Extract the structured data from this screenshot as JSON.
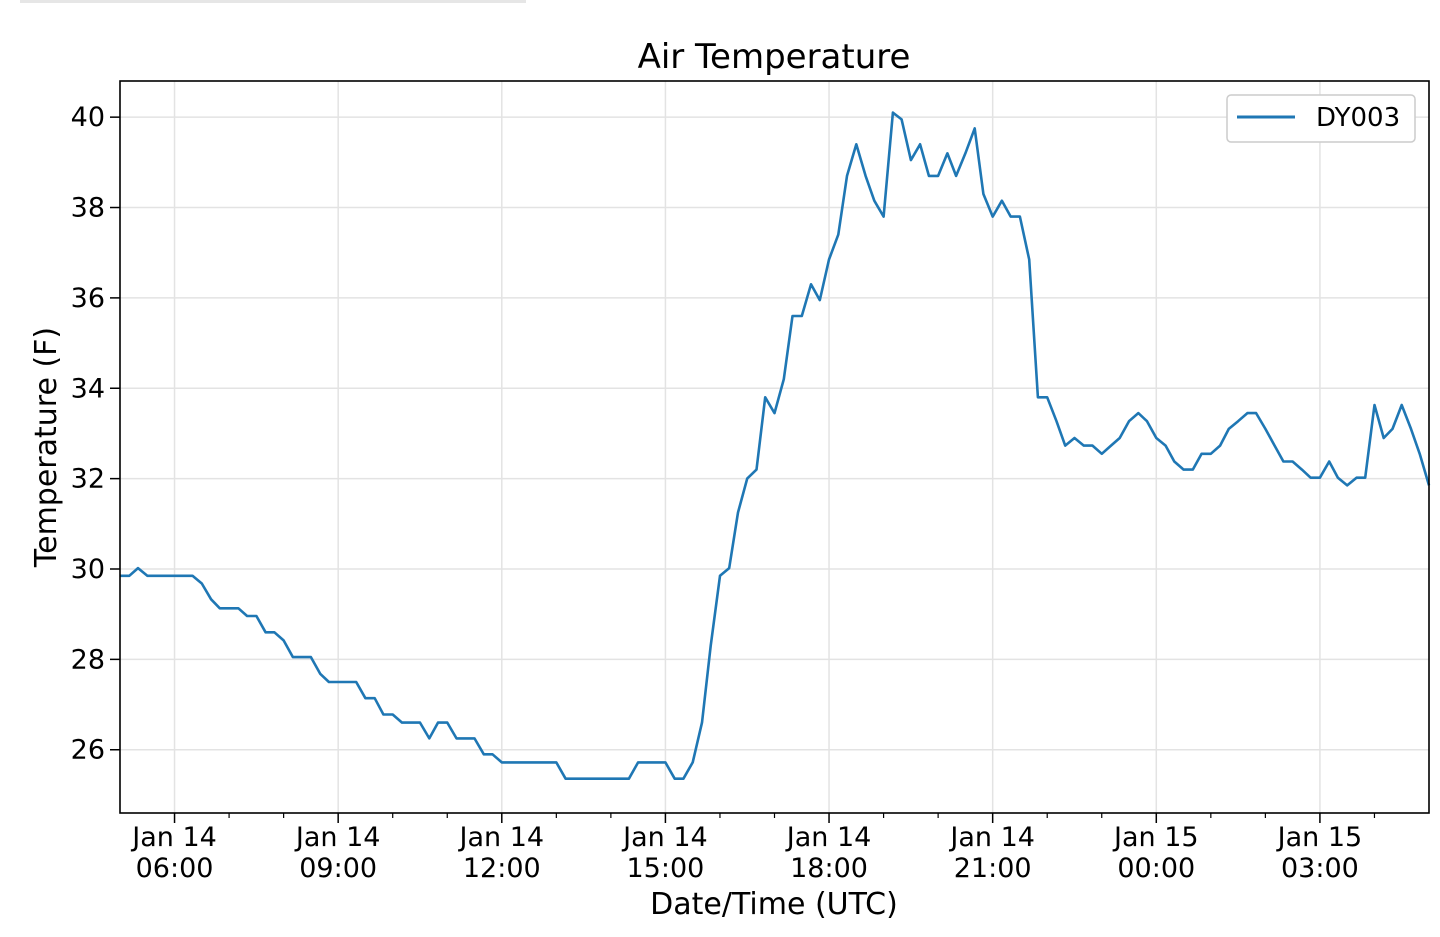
{
  "chart_data": {
    "type": "line",
    "title": "Air Temperature",
    "xlabel": "Date/Time (UTC)",
    "ylabel": "Temperature (F)",
    "x_units": "hours since Jan 14 00:00 UTC",
    "xlim": [
      5.0,
      29.0
    ],
    "ylim": [
      24.6,
      40.8
    ],
    "grid": true,
    "legend_position": "top-right",
    "x_ticks": [
      {
        "value": 6,
        "line1": "Jan 14",
        "line2": "06:00"
      },
      {
        "value": 9,
        "line1": "Jan 14",
        "line2": "09:00"
      },
      {
        "value": 12,
        "line1": "Jan 14",
        "line2": "12:00"
      },
      {
        "value": 15,
        "line1": "Jan 14",
        "line2": "15:00"
      },
      {
        "value": 18,
        "line1": "Jan 14",
        "line2": "18:00"
      },
      {
        "value": 21,
        "line1": "Jan 14",
        "line2": "21:00"
      },
      {
        "value": 24,
        "line1": "Jan 15",
        "line2": "00:00"
      },
      {
        "value": 27,
        "line1": "Jan 15",
        "line2": "03:00"
      }
    ],
    "x_minor_ticks": [
      7,
      8,
      10,
      11,
      13,
      14,
      16,
      17,
      19,
      20,
      22,
      23,
      25,
      26,
      28
    ],
    "y_ticks": [
      26,
      28,
      30,
      32,
      34,
      36,
      38,
      40
    ],
    "series": [
      {
        "name": "DY003",
        "color": "#1f77b4",
        "points": [
          [
            5.0,
            29.85
          ],
          [
            5.17,
            29.85
          ],
          [
            5.33,
            30.02
          ],
          [
            5.5,
            29.85
          ],
          [
            5.67,
            29.85
          ],
          [
            5.83,
            29.85
          ],
          [
            6.0,
            29.85
          ],
          [
            6.17,
            29.85
          ],
          [
            6.33,
            29.85
          ],
          [
            6.5,
            29.68
          ],
          [
            6.67,
            29.33
          ],
          [
            6.83,
            29.13
          ],
          [
            7.0,
            29.13
          ],
          [
            7.17,
            29.13
          ],
          [
            7.33,
            28.96
          ],
          [
            7.5,
            28.96
          ],
          [
            7.67,
            28.6
          ],
          [
            7.83,
            28.6
          ],
          [
            8.0,
            28.42
          ],
          [
            8.17,
            28.05
          ],
          [
            8.33,
            28.05
          ],
          [
            8.5,
            28.05
          ],
          [
            8.67,
            27.68
          ],
          [
            8.83,
            27.5
          ],
          [
            9.0,
            27.5
          ],
          [
            9.17,
            27.5
          ],
          [
            9.33,
            27.5
          ],
          [
            9.5,
            27.14
          ],
          [
            9.67,
            27.14
          ],
          [
            9.83,
            26.78
          ],
          [
            10.0,
            26.78
          ],
          [
            10.17,
            26.6
          ],
          [
            10.33,
            26.6
          ],
          [
            10.5,
            26.6
          ],
          [
            10.67,
            26.25
          ],
          [
            10.83,
            26.6
          ],
          [
            11.0,
            26.6
          ],
          [
            11.17,
            26.25
          ],
          [
            11.33,
            26.25
          ],
          [
            11.5,
            26.25
          ],
          [
            11.67,
            25.9
          ],
          [
            11.83,
            25.9
          ],
          [
            12.0,
            25.72
          ],
          [
            12.17,
            25.72
          ],
          [
            12.33,
            25.72
          ],
          [
            12.5,
            25.72
          ],
          [
            12.67,
            25.72
          ],
          [
            12.83,
            25.72
          ],
          [
            13.0,
            25.72
          ],
          [
            13.17,
            25.36
          ],
          [
            13.33,
            25.36
          ],
          [
            13.5,
            25.36
          ],
          [
            13.67,
            25.36
          ],
          [
            13.83,
            25.36
          ],
          [
            14.0,
            25.36
          ],
          [
            14.17,
            25.36
          ],
          [
            14.33,
            25.36
          ],
          [
            14.5,
            25.72
          ],
          [
            14.67,
            25.72
          ],
          [
            14.83,
            25.72
          ],
          [
            15.0,
            25.72
          ],
          [
            15.17,
            25.36
          ],
          [
            15.33,
            25.36
          ],
          [
            15.5,
            25.72
          ],
          [
            15.67,
            26.6
          ],
          [
            15.83,
            28.3
          ],
          [
            16.0,
            29.85
          ],
          [
            16.17,
            30.02
          ],
          [
            16.33,
            31.25
          ],
          [
            16.5,
            32.0
          ],
          [
            16.67,
            32.2
          ],
          [
            16.83,
            33.8
          ],
          [
            17.0,
            33.45
          ],
          [
            17.17,
            34.2
          ],
          [
            17.33,
            35.6
          ],
          [
            17.5,
            35.6
          ],
          [
            17.67,
            36.3
          ],
          [
            17.83,
            35.95
          ],
          [
            18.0,
            36.85
          ],
          [
            18.17,
            37.4
          ],
          [
            18.33,
            38.7
          ],
          [
            18.5,
            39.4
          ],
          [
            18.67,
            38.7
          ],
          [
            18.83,
            38.15
          ],
          [
            19.0,
            37.8
          ],
          [
            19.17,
            40.1
          ],
          [
            19.33,
            39.95
          ],
          [
            19.5,
            39.05
          ],
          [
            19.67,
            39.4
          ],
          [
            19.83,
            38.7
          ],
          [
            20.0,
            38.7
          ],
          [
            20.17,
            39.2
          ],
          [
            20.33,
            38.7
          ],
          [
            20.5,
            39.2
          ],
          [
            20.67,
            39.75
          ],
          [
            20.83,
            38.3
          ],
          [
            21.0,
            37.8
          ],
          [
            21.17,
            38.15
          ],
          [
            21.33,
            37.8
          ],
          [
            21.5,
            37.8
          ],
          [
            21.67,
            36.85
          ],
          [
            21.83,
            33.8
          ],
          [
            22.0,
            33.8
          ],
          [
            22.17,
            33.27
          ],
          [
            22.33,
            32.73
          ],
          [
            22.5,
            32.9
          ],
          [
            22.67,
            32.73
          ],
          [
            22.83,
            32.73
          ],
          [
            23.0,
            32.55
          ],
          [
            23.17,
            32.73
          ],
          [
            23.33,
            32.9
          ],
          [
            23.5,
            33.27
          ],
          [
            23.67,
            33.45
          ],
          [
            23.83,
            33.27
          ],
          [
            24.0,
            32.9
          ],
          [
            24.17,
            32.73
          ],
          [
            24.33,
            32.38
          ],
          [
            24.5,
            32.2
          ],
          [
            24.67,
            32.2
          ],
          [
            24.83,
            32.55
          ],
          [
            25.0,
            32.55
          ],
          [
            25.17,
            32.73
          ],
          [
            25.33,
            33.1
          ],
          [
            25.5,
            33.27
          ],
          [
            25.67,
            33.45
          ],
          [
            25.83,
            33.45
          ],
          [
            26.0,
            33.1
          ],
          [
            26.17,
            32.73
          ],
          [
            26.33,
            32.38
          ],
          [
            26.5,
            32.38
          ],
          [
            26.67,
            32.2
          ],
          [
            26.83,
            32.02
          ],
          [
            27.0,
            32.02
          ],
          [
            27.17,
            32.38
          ],
          [
            27.33,
            32.02
          ],
          [
            27.5,
            31.85
          ],
          [
            27.67,
            32.02
          ],
          [
            27.83,
            32.02
          ],
          [
            28.0,
            33.63
          ],
          [
            28.17,
            32.9
          ],
          [
            28.33,
            33.1
          ],
          [
            28.5,
            33.63
          ],
          [
            28.67,
            33.1
          ],
          [
            28.83,
            32.55
          ],
          [
            29.0,
            31.85
          ]
        ]
      }
    ]
  }
}
